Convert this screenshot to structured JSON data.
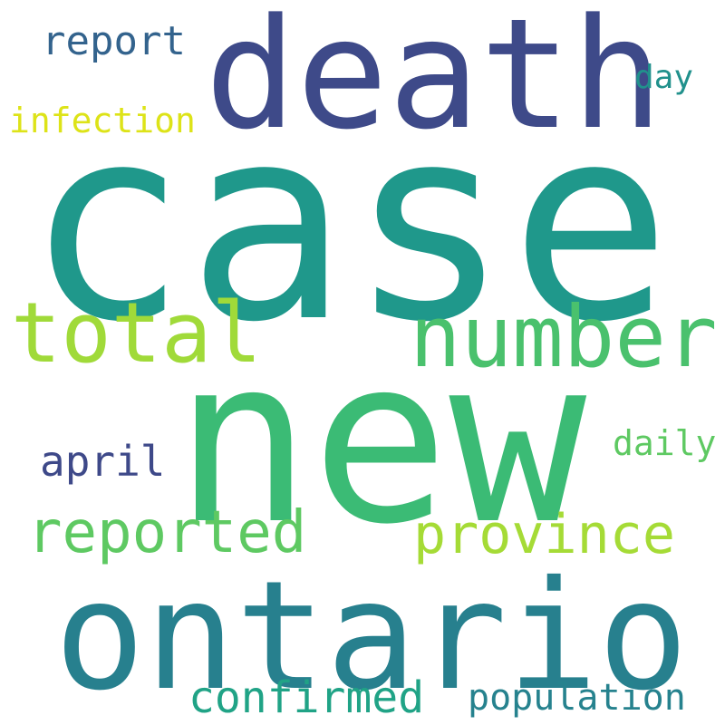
{
  "words": [
    {
      "id": "death",
      "text": "death",
      "color": "#3e4a89"
    },
    {
      "id": "report",
      "text": "report",
      "color": "#33638d"
    },
    {
      "id": "day",
      "text": "day",
      "color": "#21918c"
    },
    {
      "id": "infection",
      "text": "infection",
      "color": "#dde318"
    },
    {
      "id": "case",
      "text": "case",
      "color": "#1f988b"
    },
    {
      "id": "total",
      "text": "total",
      "color": "#a0da39"
    },
    {
      "id": "number",
      "text": "number",
      "color": "#4ac16d"
    },
    {
      "id": "new",
      "text": "new",
      "color": "#3bbb75"
    },
    {
      "id": "april",
      "text": "april",
      "color": "#3e4989"
    },
    {
      "id": "daily",
      "text": "daily",
      "color": "#5ec962"
    },
    {
      "id": "reported",
      "text": "reported",
      "color": "#5ec962"
    },
    {
      "id": "province",
      "text": "province",
      "color": "#a5db36"
    },
    {
      "id": "ontario",
      "text": "ontario",
      "color": "#27808e"
    },
    {
      "id": "confirmed",
      "text": "confirmed",
      "color": "#20a386"
    },
    {
      "id": "population",
      "text": "population",
      "color": "#26828e"
    }
  ]
}
